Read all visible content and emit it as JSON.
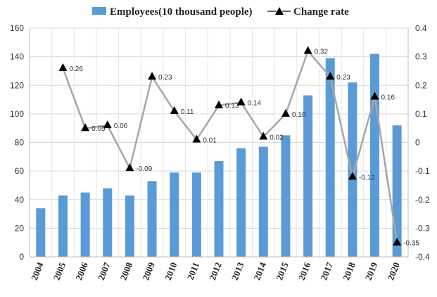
{
  "chart_data": {
    "type": "bar+line",
    "title": "",
    "categories": [
      "2004",
      "2005",
      "2006",
      "2007",
      "2008",
      "2009",
      "2010",
      "2011",
      "2012",
      "2013",
      "2014",
      "2015",
      "2016",
      "2017",
      "2018",
      "2019",
      "2020"
    ],
    "series": [
      {
        "name": "Employees(10 thousand people)",
        "type": "bar",
        "axis": "left",
        "color": "#5b9bd5",
        "values": [
          34,
          43,
          45,
          48,
          43,
          53,
          59,
          59,
          67,
          76,
          77,
          85,
          113,
          139,
          122,
          142,
          92
        ]
      },
      {
        "name": "Change rate",
        "type": "line",
        "axis": "right",
        "color": "#a6a6a6",
        "marker_color": "#000000",
        "values": [
          null,
          0.26,
          0.05,
          0.06,
          -0.09,
          0.23,
          0.11,
          0.01,
          0.13,
          0.14,
          0.02,
          0.1,
          0.32,
          0.23,
          -0.12,
          0.16,
          -0.35
        ],
        "labels": [
          "",
          "0.26",
          "0.05",
          "0.06",
          "-0.09",
          "0.23",
          "0.11",
          "0.01",
          "0.13",
          "0.14",
          "0.02",
          "0.10",
          "0.32",
          "0.23",
          "-0.12",
          "0.16",
          "-0.35"
        ]
      }
    ],
    "y_left": {
      "min": 0,
      "max": 160,
      "step": 20,
      "ticks": [
        "0",
        "20",
        "40",
        "60",
        "80",
        "100",
        "120",
        "140",
        "160"
      ]
    },
    "y_right": {
      "min": -0.4,
      "max": 0.4,
      "step": 0.1,
      "ticks": [
        "-0.4",
        "-0.3",
        "-0.2",
        "-0.1",
        "0",
        "0.1",
        "0.2",
        "0.3",
        "0.4"
      ]
    },
    "grid": true,
    "legend_position": "top"
  }
}
